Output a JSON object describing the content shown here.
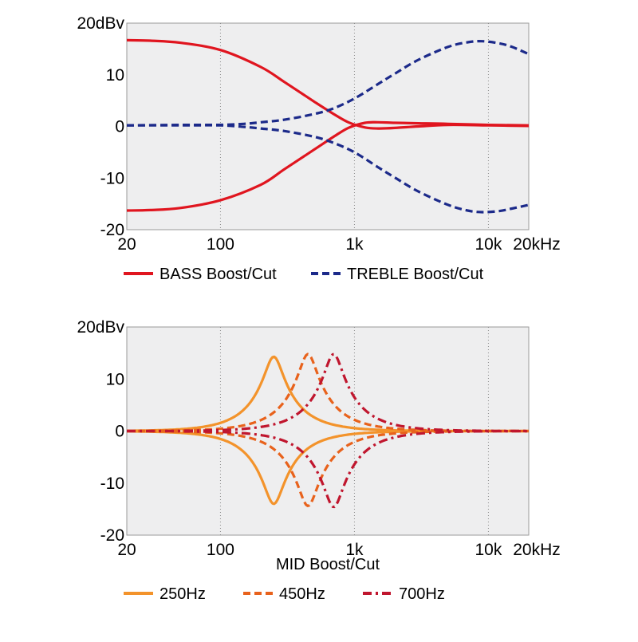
{
  "chart_data": [
    {
      "type": "line",
      "xscale": "log",
      "xlim": [
        20,
        20000
      ],
      "ylim": [
        -20,
        20
      ],
      "grid": true,
      "legend_placement": "bottom",
      "x_tick_labels": [
        {
          "value": 20,
          "label": "20"
        },
        {
          "value": 100,
          "label": "100"
        },
        {
          "value": 1000,
          "label": "1k"
        },
        {
          "value": 10000,
          "label": "10k"
        },
        {
          "value": 20000,
          "label": "20kHz"
        }
      ],
      "y_tick_labels": [
        {
          "value": 20,
          "label": "20dBv"
        },
        {
          "value": 10,
          "label": "10"
        },
        {
          "value": 0,
          "label": "0"
        },
        {
          "value": -10,
          "label": "-10"
        },
        {
          "value": -20,
          "label": "-20"
        }
      ],
      "xlabel": "",
      "legend": [
        {
          "label": "BASS Boost/Cut",
          "color": "#e0151f",
          "dash": "solid"
        },
        {
          "label": "TREBLE Boost/Cut",
          "color": "#1c2a8a",
          "dash": "dashed"
        }
      ],
      "series": [
        {
          "legend": 0,
          "x": [
            20,
            30,
            50,
            100,
            200,
            300,
            500,
            700,
            900,
            1200,
            1500,
            2000,
            3000,
            5000,
            10000,
            20000
          ],
          "y": [
            16.7,
            16.6,
            16.2,
            14.8,
            11.5,
            8.6,
            4.8,
            2.4,
            0.8,
            -0.2,
            -0.4,
            -0.3,
            0.0,
            0.3,
            0.2,
            0.1
          ]
        },
        {
          "legend": 0,
          "x": [
            20,
            30,
            50,
            100,
            200,
            300,
            500,
            700,
            900,
            1200,
            1500,
            2000,
            3000,
            5000,
            10000,
            20000
          ],
          "y": [
            -16.3,
            -16.2,
            -15.8,
            -14.3,
            -11.3,
            -8.3,
            -4.5,
            -2.0,
            -0.3,
            0.7,
            0.8,
            0.7,
            0.6,
            0.5,
            0.3,
            0.2
          ]
        },
        {
          "legend": 1,
          "x": [
            20,
            50,
            100,
            150,
            200,
            300,
            500,
            700,
            1000,
            1500,
            2000,
            3000,
            5000,
            7000,
            9000,
            12000,
            15000,
            20000
          ],
          "y": [
            0.2,
            0.3,
            0.3,
            0.5,
            0.8,
            1.3,
            2.4,
            3.5,
            5.4,
            8.2,
            10.2,
            12.9,
            15.4,
            16.3,
            16.5,
            16.1,
            15.4,
            14.0
          ]
        },
        {
          "legend": 1,
          "x": [
            20,
            50,
            100,
            150,
            200,
            300,
            500,
            700,
            1000,
            1500,
            2000,
            3000,
            5000,
            7000,
            9000,
            12000,
            15000,
            20000
          ],
          "y": [
            0.2,
            0.2,
            0.2,
            -0.1,
            -0.4,
            -0.9,
            -2.0,
            -3.2,
            -5.0,
            -7.9,
            -9.9,
            -12.6,
            -15.2,
            -16.3,
            -16.6,
            -16.4,
            -15.9,
            -15.2
          ]
        }
      ]
    },
    {
      "type": "line",
      "xscale": "log",
      "xlim": [
        20,
        20000
      ],
      "ylim": [
        -20,
        20
      ],
      "grid": true,
      "legend_placement": "bottom",
      "x_tick_labels": [
        {
          "value": 20,
          "label": "20"
        },
        {
          "value": 100,
          "label": "100"
        },
        {
          "value": 1000,
          "label": "1k"
        },
        {
          "value": 10000,
          "label": "10k"
        },
        {
          "value": 20000,
          "label": "20kHz"
        }
      ],
      "y_tick_labels": [
        {
          "value": 20,
          "label": "20dBv"
        },
        {
          "value": 10,
          "label": "10"
        },
        {
          "value": 0,
          "label": "0"
        },
        {
          "value": -10,
          "label": "-10"
        },
        {
          "value": -20,
          "label": "-20"
        }
      ],
      "xlabel": "MID Boost/Cut",
      "legend": [
        {
          "label": "250Hz",
          "color": "#f3932b",
          "dash": "solid"
        },
        {
          "label": "450Hz",
          "color": "#e8621c",
          "dash": "dashed"
        },
        {
          "label": "700Hz",
          "color": "#c0162e",
          "dash": "dashdot"
        }
      ],
      "series": [
        {
          "legend": 0,
          "center": 250,
          "peak": 14.3
        },
        {
          "legend": 0,
          "center": 250,
          "peak": -14.0
        },
        {
          "legend": 1,
          "center": 450,
          "peak": 14.8
        },
        {
          "legend": 1,
          "center": 450,
          "peak": -14.4
        },
        {
          "legend": 2,
          "center": 700,
          "peak": 14.8
        },
        {
          "legend": 2,
          "center": 700,
          "peak": -14.6
        }
      ]
    }
  ]
}
